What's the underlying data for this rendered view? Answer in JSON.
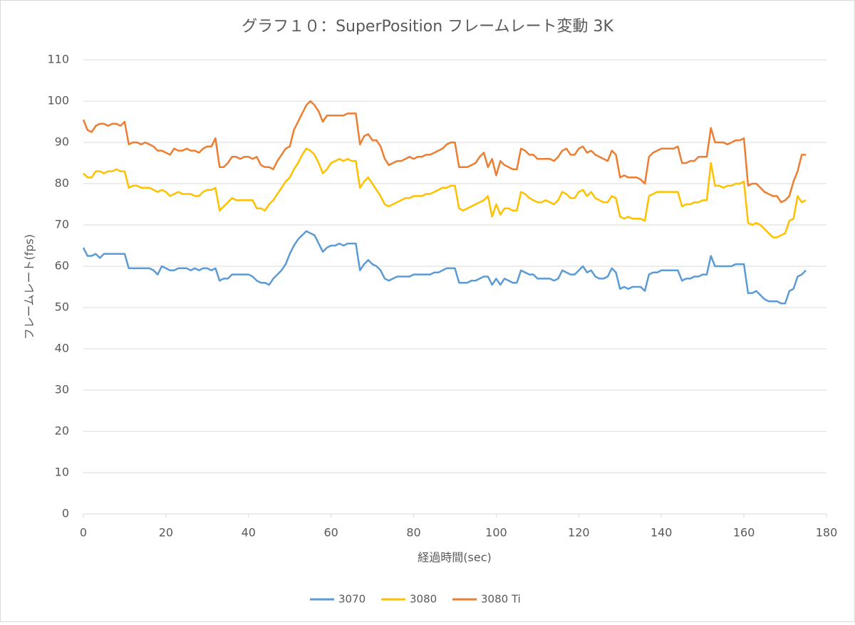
{
  "chart_data": {
    "type": "line",
    "title": "グラフ１０：SuperPosition フレームレート変動 3K",
    "x_label": "経過時間(sec)",
    "y_label": "フレームレート(fps)",
    "x": [
      0,
      1,
      2,
      3,
      4,
      5,
      6,
      7,
      8,
      9,
      10,
      11,
      12,
      13,
      14,
      15,
      16,
      17,
      18,
      19,
      20,
      21,
      22,
      23,
      24,
      25,
      26,
      27,
      28,
      29,
      30,
      31,
      32,
      33,
      34,
      35,
      36,
      37,
      38,
      39,
      40,
      41,
      42,
      43,
      44,
      45,
      46,
      47,
      48,
      49,
      50,
      51,
      52,
      53,
      54,
      55,
      56,
      57,
      58,
      59,
      60,
      61,
      62,
      63,
      64,
      65,
      66,
      67,
      68,
      69,
      70,
      71,
      72,
      73,
      74,
      75,
      76,
      77,
      78,
      79,
      80,
      81,
      82,
      83,
      84,
      85,
      86,
      87,
      88,
      89,
      90,
      91,
      92,
      93,
      94,
      95,
      96,
      97,
      98,
      99,
      100,
      101,
      102,
      103,
      104,
      105,
      106,
      107,
      108,
      109,
      110,
      111,
      112,
      113,
      114,
      115,
      116,
      117,
      118,
      119,
      120,
      121,
      122,
      123,
      124,
      125,
      126,
      127,
      128,
      129,
      130,
      131,
      132,
      133,
      134,
      135,
      136,
      137,
      138,
      139,
      140,
      141,
      142,
      143,
      144,
      145,
      146,
      147,
      148,
      149,
      150,
      151,
      152,
      153,
      154,
      155,
      156,
      157,
      158,
      159,
      160,
      161,
      162,
      163,
      164,
      165,
      166,
      167,
      168,
      169,
      170,
      171,
      172,
      173,
      174,
      175
    ],
    "series": [
      {
        "name": "3070",
        "color": "#5b9bd5",
        "values": [
          64.5,
          62.5,
          62.5,
          63,
          62,
          63,
          63,
          63,
          63,
          63,
          63,
          59.5,
          59.5,
          59.5,
          59.5,
          59.5,
          59.5,
          59,
          58,
          60,
          59.5,
          59,
          59,
          59.5,
          59.5,
          59.5,
          59,
          59.5,
          59,
          59.5,
          59.5,
          59,
          59.5,
          56.5,
          57,
          57,
          58,
          58,
          58,
          58,
          58,
          57.5,
          56.5,
          56,
          56,
          55.5,
          57,
          58,
          59,
          60.5,
          63,
          65,
          66.5,
          67.5,
          68.5,
          68,
          67.5,
          65.5,
          63.5,
          64.5,
          65,
          65,
          65.5,
          65,
          65.5,
          65.5,
          65.5,
          59,
          60.5,
          61.5,
          60.5,
          60,
          59,
          57,
          56.5,
          57,
          57.5,
          57.5,
          57.5,
          57.5,
          58,
          58,
          58,
          58,
          58,
          58.5,
          58.5,
          59,
          59.5,
          59.5,
          59.5,
          56,
          56,
          56,
          56.5,
          56.5,
          57,
          57.5,
          57.5,
          55.5,
          57,
          55.5,
          57,
          56.5,
          56,
          56,
          59,
          58.5,
          58,
          58,
          57,
          57,
          57,
          57,
          56.5,
          57,
          59,
          58.5,
          58,
          58,
          59,
          60,
          58.5,
          59,
          57.5,
          57,
          57,
          57.5,
          59.5,
          58.5,
          54.5,
          55,
          54.5,
          55,
          55,
          55,
          54,
          58,
          58.5,
          58.5,
          59,
          59,
          59,
          59,
          59,
          56.5,
          57,
          57,
          57.5,
          57.5,
          58,
          58,
          62.5,
          60,
          60,
          60,
          60,
          60,
          60.5,
          60.5,
          60.5,
          53.5,
          53.5,
          54,
          53,
          52,
          51.5,
          51.5,
          51.5,
          51,
          51,
          54,
          54.5,
          57.5,
          58,
          59
        ]
      },
      {
        "name": "3080",
        "color": "#ffc000",
        "values": [
          82.5,
          81.5,
          81.5,
          83,
          83,
          82.5,
          83,
          83,
          83.5,
          83,
          83,
          79,
          79.5,
          79.5,
          79,
          79,
          79,
          78.5,
          78,
          78.5,
          78,
          77,
          77.5,
          78,
          77.5,
          77.5,
          77.5,
          77,
          77,
          78,
          78.5,
          78.5,
          79,
          73.5,
          74.5,
          75.5,
          76.5,
          76,
          76,
          76,
          76,
          76,
          74,
          74,
          73.5,
          75,
          76,
          77.5,
          79,
          80.5,
          81.5,
          83.5,
          85,
          87,
          88.5,
          88,
          87,
          85,
          82.5,
          83.5,
          85,
          85.5,
          86,
          85.5,
          86,
          85.5,
          85.5,
          79,
          80.5,
          81.5,
          80,
          78.5,
          77,
          75,
          74.5,
          75,
          75.5,
          76,
          76.5,
          76.5,
          77,
          77,
          77,
          77.5,
          77.5,
          78,
          78.5,
          79,
          79,
          79.5,
          79.5,
          74,
          73.5,
          74,
          74.5,
          75,
          75.5,
          76,
          77,
          72,
          75,
          72.5,
          74,
          74,
          73.5,
          73.5,
          78,
          77.5,
          76.5,
          76,
          75.5,
          75.5,
          76,
          75.5,
          75,
          76,
          78,
          77.5,
          76.5,
          76.5,
          78,
          78.5,
          77,
          78,
          76.5,
          76,
          75.5,
          75.5,
          77,
          76.5,
          72,
          71.5,
          72,
          71.5,
          71.5,
          71.5,
          71,
          77,
          77.5,
          78,
          78,
          78,
          78,
          78,
          78,
          74.5,
          75,
          75,
          75.5,
          75.5,
          76,
          76,
          85,
          79.5,
          79.5,
          79,
          79.5,
          79.5,
          80,
          80,
          80.5,
          70.5,
          70,
          70.5,
          70,
          69,
          68,
          67,
          67,
          67.5,
          68,
          71,
          71.5,
          77,
          75.5,
          76
        ]
      },
      {
        "name": "3080 Ti",
        "color": "#ed7d31",
        "values": [
          95.5,
          93,
          92.5,
          94,
          94.5,
          94.5,
          94,
          94.5,
          94.5,
          94,
          95,
          89.5,
          90,
          90,
          89.5,
          90,
          89.5,
          89,
          88,
          88,
          87.5,
          87,
          88.5,
          88,
          88,
          88.5,
          88,
          88,
          87.5,
          88.5,
          89,
          89,
          91,
          84,
          84,
          85,
          86.5,
          86.5,
          86,
          86.5,
          86.5,
          86,
          86.5,
          84.5,
          84,
          84,
          83.5,
          85.5,
          87,
          88.5,
          89,
          93,
          95,
          97,
          99,
          100,
          99,
          97.5,
          95,
          96.5,
          96.5,
          96.5,
          96.5,
          96.5,
          97,
          97,
          97,
          89.5,
          91.5,
          92,
          90.5,
          90.5,
          89,
          86,
          84.5,
          85,
          85.5,
          85.5,
          86,
          86.5,
          86,
          86.5,
          86.5,
          87,
          87,
          87.5,
          88,
          88.5,
          89.5,
          90,
          90,
          84,
          84,
          84,
          84.5,
          85,
          86.5,
          87.5,
          84,
          86,
          82,
          85.5,
          84.5,
          84,
          83.5,
          83.5,
          88.5,
          88,
          87,
          87,
          86,
          86,
          86,
          86,
          85.5,
          86.5,
          88,
          88.5,
          87,
          87,
          88.5,
          89,
          87.5,
          88,
          87,
          86.5,
          86,
          85.5,
          88,
          87,
          81.5,
          82,
          81.5,
          81.5,
          81.5,
          81,
          80,
          86.5,
          87.5,
          88,
          88.5,
          88.5,
          88.5,
          88.5,
          89,
          85,
          85,
          85.5,
          85.5,
          86.5,
          86.5,
          86.5,
          93.5,
          90,
          90,
          90,
          89.5,
          90,
          90.5,
          90.5,
          91,
          79.5,
          80,
          80,
          79,
          78,
          77.5,
          77,
          77,
          75.5,
          76,
          77,
          80.5,
          83,
          87,
          87
        ]
      }
    ],
    "xlim": [
      0,
      180
    ],
    "xticks": [
      0,
      20,
      40,
      60,
      80,
      100,
      120,
      140,
      160,
      180
    ],
    "ylim": [
      0,
      110
    ],
    "yticks": [
      0,
      10,
      20,
      30,
      40,
      50,
      60,
      70,
      80,
      90,
      100,
      110
    ],
    "grid": true,
    "legend": "bottom"
  }
}
